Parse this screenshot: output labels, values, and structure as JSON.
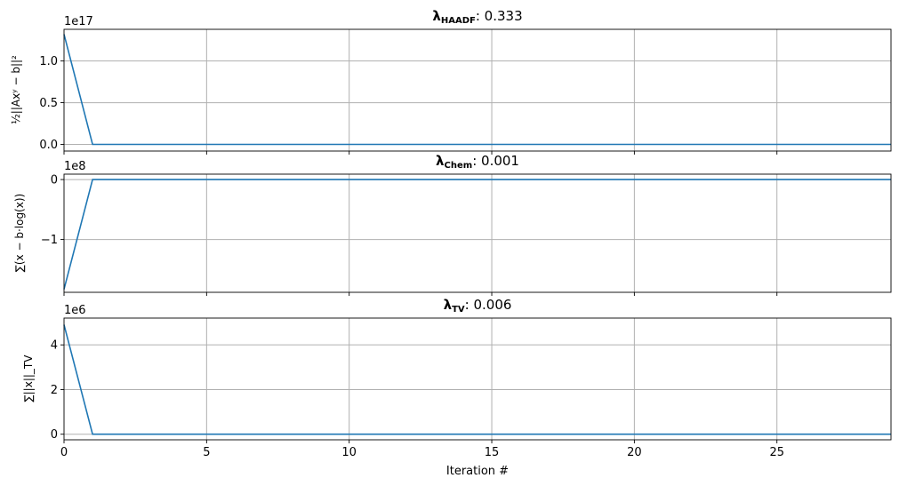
{
  "chart_data": [
    {
      "type": "line",
      "title_lambda": "λ",
      "title_sub": "HAADF",
      "title_value": ": 0.333",
      "ylabel": "½||Axʸ − b||²",
      "y_offset": "1e17",
      "yticks": [
        0,
        0.5,
        1.0
      ],
      "ytick_labels": [
        "0.0",
        "0.5",
        "1.0"
      ],
      "ylim": [
        -0.08,
        1.38
      ],
      "xlim": [
        0,
        29
      ],
      "x": [
        0,
        1,
        2,
        29
      ],
      "values": [
        1.32,
        0.0,
        0.0,
        0.0
      ],
      "show_xtick_labels": false
    },
    {
      "type": "line",
      "title_lambda": "λ",
      "title_sub": "Chem",
      "title_value": ": 0.001",
      "ylabel": "∑(x − b·log(x))",
      "y_offset": "1e8",
      "yticks": [
        0,
        -1
      ],
      "ytick_labels": [
        "0",
        "−1"
      ],
      "ylim": [
        -1.88,
        0.09
      ],
      "xlim": [
        0,
        29
      ],
      "x": [
        0,
        1,
        2,
        29
      ],
      "values": [
        -1.83,
        0.0,
        0.0,
        0.0
      ],
      "show_xtick_labels": false
    },
    {
      "type": "line",
      "title_lambda": "λ",
      "title_sub": "TV",
      "title_value": ": 0.006",
      "ylabel": "∑||x||_TV",
      "y_offset": "1e6",
      "yticks": [
        0,
        2,
        4
      ],
      "ytick_labels": [
        "0",
        "2",
        "4"
      ],
      "ylim": [
        -0.25,
        5.2
      ],
      "xlim": [
        0,
        29
      ],
      "x": [
        0,
        1,
        2,
        29
      ],
      "values": [
        4.9,
        0.0,
        0.0,
        0.0
      ],
      "show_xtick_labels": true
    }
  ],
  "xticks": [
    0,
    5,
    10,
    15,
    20,
    25
  ],
  "xtick_labels": [
    "0",
    "5",
    "10",
    "15",
    "20",
    "25"
  ],
  "xlabel": "Iteration #",
  "grid": true,
  "colors": {
    "series": "#1f77b4",
    "grid": "#b0b0b0"
  }
}
